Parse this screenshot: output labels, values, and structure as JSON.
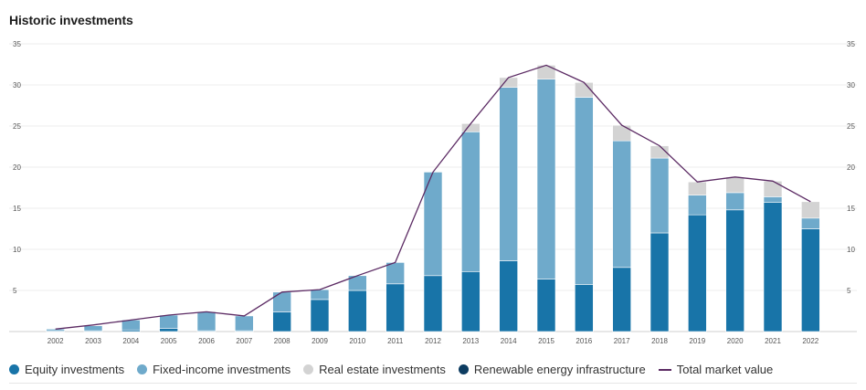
{
  "title": "Historic investments",
  "colors": {
    "equity": "#1874a8",
    "fixed_income": "#6faacb",
    "real_estate": "#d3d3d3",
    "renewable": "#0d3c61",
    "total_line": "#5b2a63",
    "grid": "#ececec"
  },
  "legend": [
    {
      "key": "equity",
      "label": "Equity investments",
      "shape": "dot"
    },
    {
      "key": "fixed_income",
      "label": "Fixed-income investments",
      "shape": "dot"
    },
    {
      "key": "real_estate",
      "label": "Real estate investments",
      "shape": "dot"
    },
    {
      "key": "renewable",
      "label": "Renewable energy infrastructure",
      "shape": "dot"
    },
    {
      "key": "total_line",
      "label": "Total market value",
      "shape": "line"
    }
  ],
  "chart_data": {
    "type": "bar",
    "stacked": true,
    "categories": [
      "2002",
      "2003",
      "2004",
      "2005",
      "2006",
      "2007",
      "2008",
      "2009",
      "2010",
      "2011",
      "2012",
      "2013",
      "2014",
      "2015",
      "2016",
      "2017",
      "2018",
      "2019",
      "2020",
      "2021",
      "2022"
    ],
    "series": [
      {
        "name": "Equity investments",
        "key": "equity",
        "values": [
          0.1,
          0.1,
          0.2,
          0.4,
          0.1,
          0.1,
          2.4,
          3.9,
          5.0,
          5.8,
          6.8,
          7.3,
          8.6,
          6.4,
          5.7,
          7.8,
          12.0,
          14.2,
          14.8,
          15.7,
          12.5
        ]
      },
      {
        "name": "Fixed-income investments",
        "key": "fixed_income",
        "values": [
          0.2,
          0.6,
          1.2,
          1.6,
          2.3,
          1.8,
          2.4,
          1.2,
          1.8,
          2.6,
          12.6,
          17.0,
          21.1,
          24.3,
          22.8,
          15.4,
          9.1,
          2.4,
          2.1,
          0.7,
          1.3
        ]
      },
      {
        "name": "Real estate investments",
        "key": "real_estate",
        "values": [
          0,
          0,
          0,
          0,
          0,
          0,
          0,
          0,
          0,
          0,
          0,
          1.0,
          1.2,
          1.7,
          1.8,
          1.9,
          1.5,
          1.6,
          1.9,
          1.9,
          2.0
        ]
      },
      {
        "name": "Renewable energy infrastructure",
        "key": "renewable",
        "values": [
          0,
          0,
          0,
          0,
          0,
          0,
          0,
          0,
          0,
          0,
          0,
          0,
          0,
          0,
          0,
          0,
          0,
          0,
          0,
          0,
          0
        ]
      }
    ],
    "line": {
      "name": "Total market value",
      "key": "total_line",
      "values": [
        0.3,
        0.8,
        1.4,
        2.0,
        2.4,
        1.9,
        4.8,
        5.1,
        6.8,
        8.4,
        19.4,
        25.3,
        30.9,
        32.4,
        30.3,
        25.1,
        22.6,
        18.2,
        18.8,
        18.3,
        15.8
      ]
    },
    "yticks": [
      5,
      10,
      15,
      20,
      25,
      30,
      35
    ],
    "ylim": [
      0,
      35
    ],
    "grid": true,
    "legend_position": "bottom-left"
  }
}
